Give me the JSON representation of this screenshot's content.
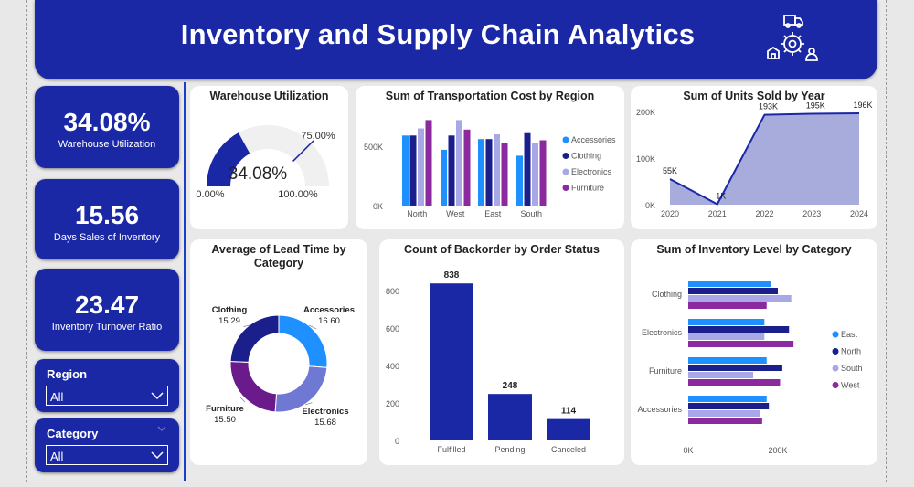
{
  "header": {
    "title": "Inventory and Supply Chain Analytics",
    "logo": "supply-chain-icon"
  },
  "kpis": [
    {
      "value": "34.08%",
      "label": "Warehouse Utilization"
    },
    {
      "value": "15.56",
      "label": "Days Sales of Inventory"
    },
    {
      "value": "23.47",
      "label": "Inventory Turnover Ratio"
    }
  ],
  "slicers": {
    "region": {
      "title": "Region",
      "value": "All"
    },
    "category": {
      "title": "Category",
      "value": "All"
    }
  },
  "colors": {
    "navy": "#1a28a6",
    "accessories": "#1e90ff",
    "clothing": "#1a1f8c",
    "electronics": "#a8a8e6",
    "furniture": "#8b2a9e",
    "donut_electronics": "#6f78d2",
    "donut_furniture": "#6b1a8c",
    "area": "#a8acdc"
  },
  "gauge": {
    "title": "Warehouse Utilization",
    "value_label": "34.08%",
    "min_label": "0.00%",
    "max_label": "100.00%",
    "target_label": "75.00%"
  },
  "chart_data": [
    {
      "type": "gauge",
      "title": "Warehouse Utilization",
      "value": 34.08,
      "min": 0,
      "max": 100,
      "target": 75
    },
    {
      "type": "bar",
      "title": "Sum of Transportation Cost by Region",
      "categories": [
        "North",
        "West",
        "East",
        "South"
      ],
      "series": [
        {
          "name": "Accessories",
          "values": [
            590,
            470,
            560,
            420
          ]
        },
        {
          "name": "Clothing",
          "values": [
            590,
            590,
            560,
            610
          ]
        },
        {
          "name": "Electronics",
          "values": [
            650,
            720,
            600,
            530
          ]
        },
        {
          "name": "Furniture",
          "values": [
            720,
            640,
            530,
            550
          ]
        }
      ],
      "yticks": [
        "0K",
        "500K"
      ],
      "legend": "right"
    },
    {
      "type": "area",
      "title": "Sum of Units Sold by Year",
      "x": [
        "2020",
        "2021",
        "2022",
        "2023",
        "2024"
      ],
      "values": [
        55,
        1,
        193,
        195,
        196
      ],
      "labels": [
        "55K",
        "1K",
        "193K",
        "195K",
        "196K"
      ],
      "yticks": [
        "0K",
        "100K",
        "200K"
      ]
    },
    {
      "type": "pie",
      "title": "Average of Lead Time by Category",
      "slices": [
        {
          "name": "Accessories",
          "value": 16.6,
          "label": "16.60"
        },
        {
          "name": "Electronics",
          "value": 15.68,
          "label": "15.68"
        },
        {
          "name": "Furniture",
          "value": 15.5,
          "label": "15.50"
        },
        {
          "name": "Clothing",
          "value": 15.29,
          "label": "15.29"
        }
      ]
    },
    {
      "type": "bar",
      "title": "Count of Backorder by Order Status",
      "categories": [
        "Fulfilled",
        "Pending",
        "Canceled"
      ],
      "values": [
        838,
        248,
        114
      ],
      "yticks": [
        "0",
        "200",
        "400",
        "600",
        "800"
      ]
    },
    {
      "type": "bar",
      "title": "Sum of Inventory Level by Category",
      "orientation": "horizontal",
      "categories": [
        "Clothing",
        "Electronics",
        "Furniture",
        "Accessories"
      ],
      "series": [
        {
          "name": "East",
          "values": [
            185,
            170,
            175,
            175
          ]
        },
        {
          "name": "North",
          "values": [
            200,
            225,
            210,
            180
          ]
        },
        {
          "name": "South",
          "values": [
            230,
            170,
            145,
            160
          ]
        },
        {
          "name": "West",
          "values": [
            175,
            235,
            205,
            165
          ]
        }
      ],
      "xticks": [
        "0K",
        "200K"
      ],
      "legend": "right"
    }
  ]
}
